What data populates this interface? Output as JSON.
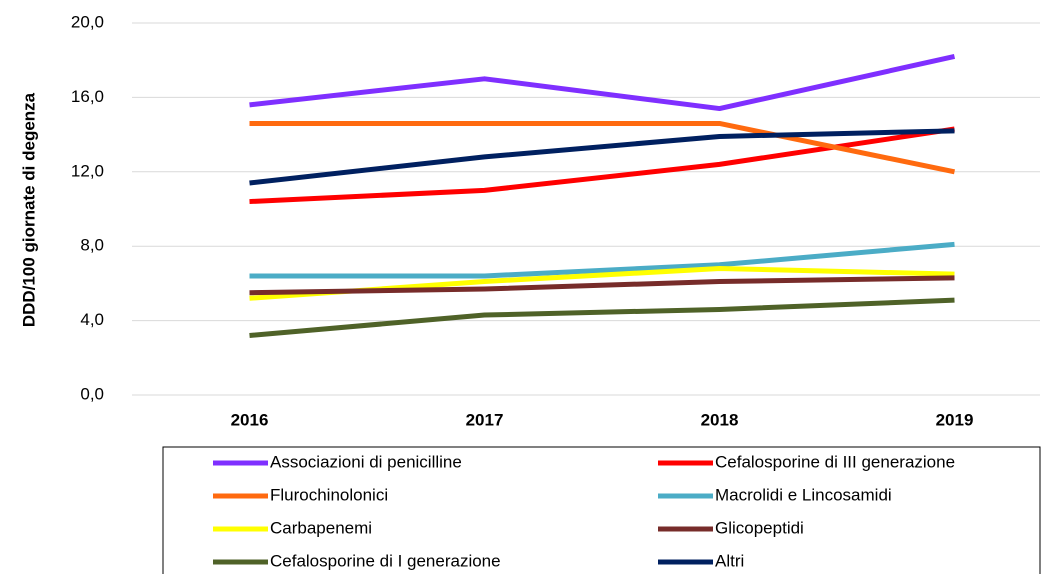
{
  "chart_data": {
    "type": "line",
    "y_label": "DDD/100 giornate di degenza",
    "categories": [
      "2016",
      "2017",
      "2018",
      "2019"
    ],
    "ylim": [
      0,
      20
    ],
    "yticks": [
      {
        "value": 0,
        "label": "0,0"
      },
      {
        "value": 4,
        "label": "4,0"
      },
      {
        "value": 8,
        "label": "8,0"
      },
      {
        "value": 12,
        "label": "12,0"
      },
      {
        "value": 16,
        "label": "16,0"
      },
      {
        "value": 20,
        "label": "20,0"
      }
    ],
    "grid": true,
    "legend": "bottom",
    "series": [
      {
        "name": "Associazioni di penicilline",
        "color": "#7f2fff",
        "values": [
          15.6,
          17.0,
          15.4,
          18.2
        ]
      },
      {
        "name": "Cefalosporine di III generazione",
        "color": "#ff0000",
        "values": [
          10.4,
          11.0,
          12.4,
          14.3
        ]
      },
      {
        "name": "Flurochinolonici",
        "color": "#ff6a0f",
        "values": [
          14.6,
          14.6,
          14.6,
          12.0
        ]
      },
      {
        "name": "Macrolidi e Lincosamidi",
        "color": "#4bacc6",
        "values": [
          6.4,
          6.4,
          7.0,
          8.1
        ]
      },
      {
        "name": "Carbapenemi",
        "color": "#ffff00",
        "values": [
          5.2,
          6.1,
          6.8,
          6.5
        ]
      },
      {
        "name": "Glicopeptidi",
        "color": "#772c2a",
        "values": [
          5.5,
          5.7,
          6.1,
          6.3
        ]
      },
      {
        "name": "Cefalosporine di I generazione",
        "color": "#4f6228",
        "values": [
          3.2,
          4.3,
          4.6,
          5.1
        ]
      },
      {
        "name": "Altri",
        "color": "#002060",
        "values": [
          11.4,
          12.8,
          13.9,
          14.2
        ]
      }
    ]
  }
}
